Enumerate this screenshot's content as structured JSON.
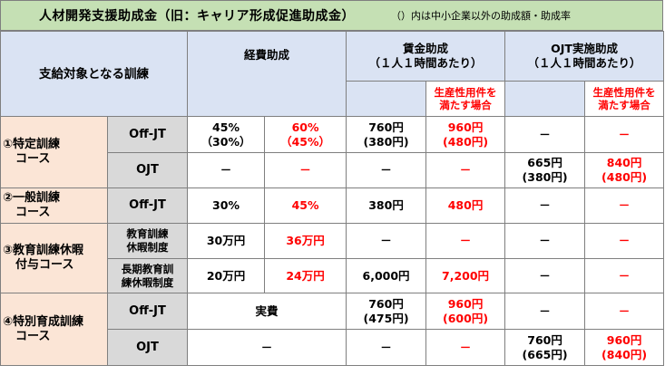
{
  "title": {
    "main": "人材開発支援助成金（旧：キャリア形成促進助成金）",
    "note": "（）内は中小企業以外の助成額・助成率"
  },
  "header": {
    "target": "支給対象となる訓練",
    "expense": "経費助成",
    "wage": [
      "賃金助成",
      "（１人１時間あたり）"
    ],
    "ojt": [
      "OJT実施助成",
      "（１人１時間あたり）"
    ],
    "productivity": [
      "生産性用件を",
      "満たす場合"
    ]
  },
  "rows": [
    {
      "course": [
        "①特定訓練",
        "コース"
      ],
      "type": [
        "Off-JT"
      ],
      "exp": [
        "45%",
        "（30%）"
      ],
      "exp_p": [
        "60%",
        "（45%）"
      ],
      "wage": [
        "760円",
        "(380円)"
      ],
      "wage_p": [
        "960円",
        "(480円)"
      ],
      "ojt": [
        "－"
      ],
      "ojt_p": [
        "－"
      ]
    },
    {
      "type": [
        "OJT"
      ],
      "exp": [
        "－"
      ],
      "exp_p": [
        "－"
      ],
      "wage": [
        "－"
      ],
      "wage_p": [
        "－"
      ],
      "ojt": [
        "665円",
        "(380円)"
      ],
      "ojt_p": [
        "840円",
        "(480円)"
      ]
    },
    {
      "course": [
        "②一般訓練",
        "コース"
      ],
      "type": [
        "Off-JT"
      ],
      "exp": [
        "30%"
      ],
      "exp_p": [
        "45%"
      ],
      "wage": [
        "380円"
      ],
      "wage_p": [
        "480円"
      ],
      "ojt": [
        "－"
      ],
      "ojt_p": [
        "－"
      ]
    },
    {
      "course": [
        "③教育訓練休暇",
        "付与コース"
      ],
      "type": [
        "教育訓練",
        "休暇制度"
      ],
      "exp": [
        "30万円"
      ],
      "exp_p": [
        "36万円"
      ],
      "wage": [
        "－"
      ],
      "wage_p": [
        "－"
      ],
      "ojt": [
        "－"
      ],
      "ojt_p": [
        "－"
      ]
    },
    {
      "type": [
        "長期教育訓",
        "練休暇制度"
      ],
      "exp": [
        "20万円"
      ],
      "exp_p": [
        "24万円"
      ],
      "wage": [
        "6,000円"
      ],
      "wage_p": [
        "7,200円"
      ],
      "ojt": [
        "－"
      ],
      "ojt_p": [
        "－"
      ]
    },
    {
      "course": [
        "④特別育成訓練",
        "コース"
      ],
      "type": [
        "Off-JT"
      ],
      "exp_merged": "実費",
      "wage": [
        "760円",
        "(475円)"
      ],
      "wage_p": [
        "960円",
        "(600円)"
      ],
      "ojt": [
        "－"
      ],
      "ojt_p": [
        "－"
      ]
    },
    {
      "type": [
        "OJT"
      ],
      "exp_merged": "－",
      "wage": [
        "－"
      ],
      "wage_p": [
        "－"
      ],
      "ojt": [
        "760円",
        "(665円)"
      ],
      "ojt_p": [
        "960円",
        "(840円)"
      ]
    }
  ]
}
